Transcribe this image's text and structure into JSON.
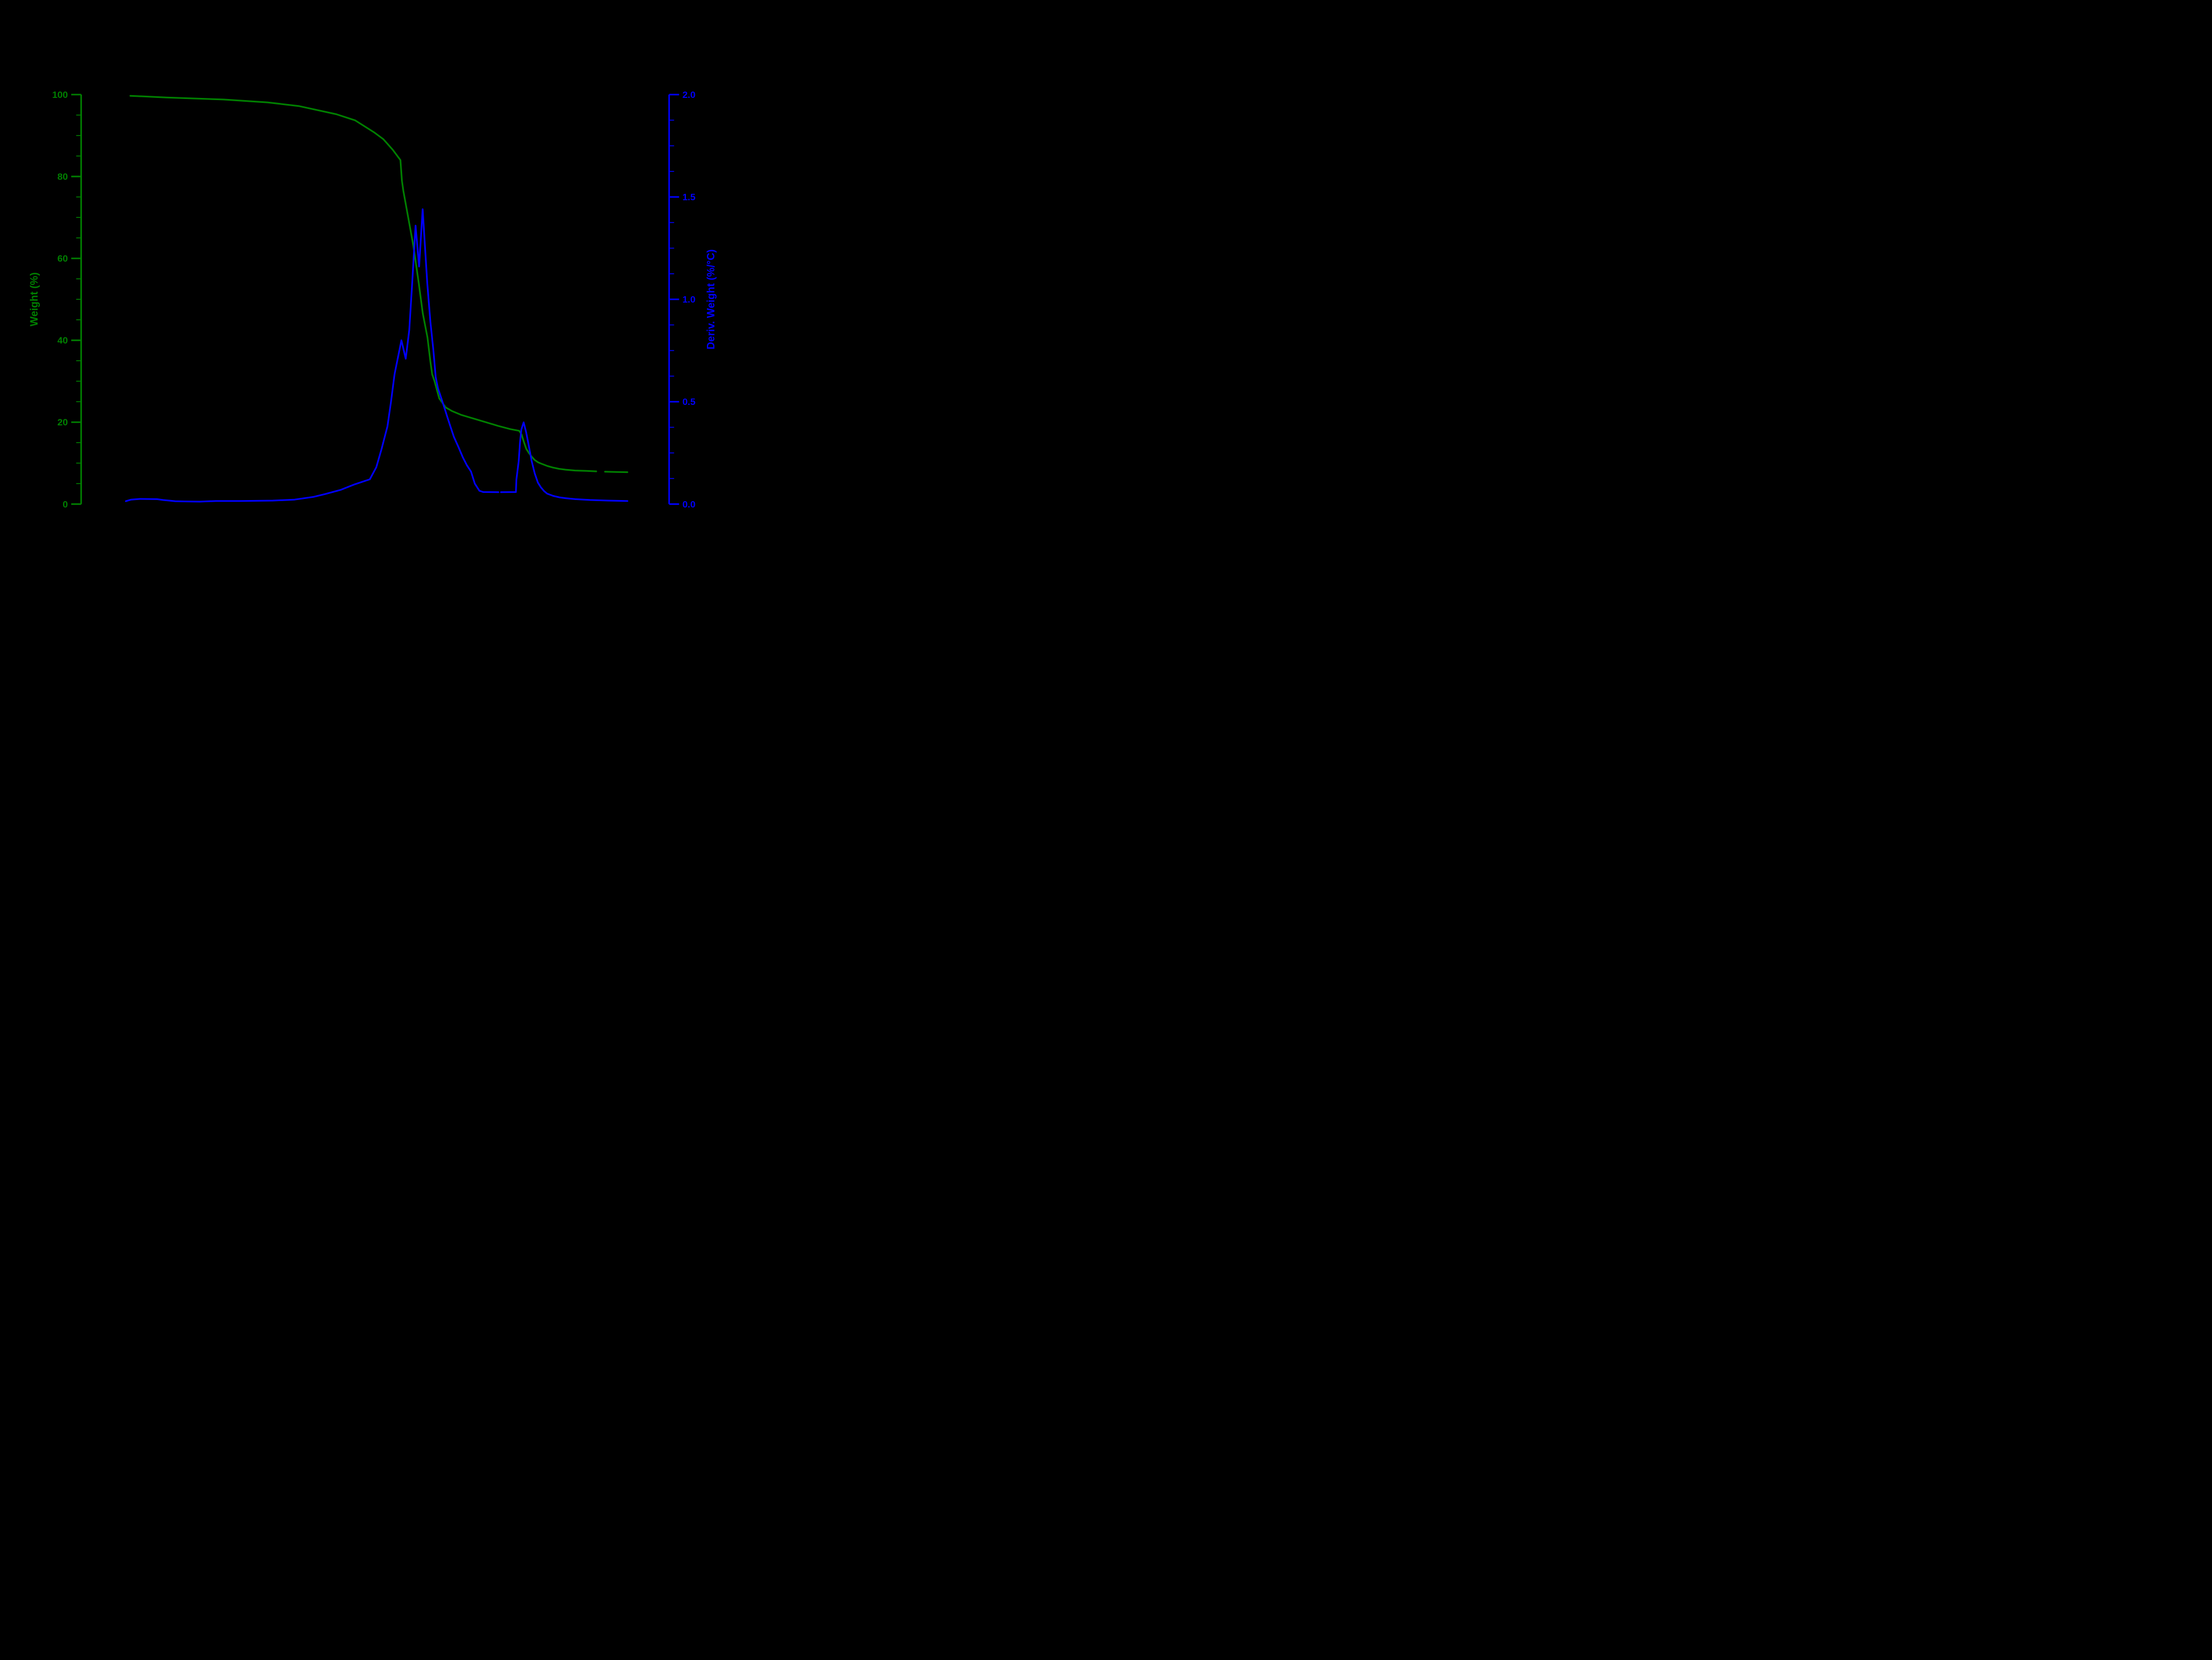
{
  "figure": {
    "background": "#000000",
    "title": ""
  },
  "chart_data": {
    "type": "line",
    "title": "",
    "background": "#000000",
    "grid": false,
    "legend": null,
    "x_axis": {
      "visible": false,
      "note": "no x-axis line, ticks or labels are visible; series x values are fractions (0-1) of plot width"
    },
    "left_axis": {
      "label": "Weight (%)",
      "color": "#008000",
      "min": 0,
      "max": 100,
      "major_ticks": [
        {
          "value": 0,
          "label": "0"
        },
        {
          "value": 20,
          "label": "20"
        },
        {
          "value": 40,
          "label": "40"
        },
        {
          "value": 60,
          "label": "60"
        },
        {
          "value": 80,
          "label": "80"
        },
        {
          "value": 100,
          "label": "100"
        }
      ],
      "minor_step": 5
    },
    "right_axis": {
      "label": "Deriv. Weight (%/°C)",
      "color": "#0000ff",
      "min": 0,
      "max": 2,
      "major_ticks": [
        {
          "value": 0,
          "label": "0.0"
        },
        {
          "value": 0.5,
          "label": "0.5"
        },
        {
          "value": 1,
          "label": "1.0"
        },
        {
          "value": 1.5,
          "label": "1.5"
        },
        {
          "value": 2,
          "label": "2.0"
        }
      ],
      "minor_step": 0.125
    },
    "series": [
      {
        "name": "Weight",
        "axis": "left",
        "color": "#008000",
        "segments": [
          [
            [
              0.0837,
              99.7
            ],
            [
              0.145,
              99.3
            ],
            [
              0.242,
              98.8
            ],
            [
              0.317,
              98.1
            ],
            [
              0.37,
              97.2
            ],
            [
              0.434,
              95.2
            ],
            [
              0.466,
              93.7
            ],
            [
              0.498,
              90.8
            ],
            [
              0.514,
              89.1
            ],
            [
              0.53,
              86.5
            ],
            [
              0.543,
              84.0
            ],
            [
              0.5455,
              79.0
            ],
            [
              0.548,
              76.5
            ],
            [
              0.565,
              63.1
            ],
            [
              0.574,
              54.1
            ],
            [
              0.581,
              46.6
            ],
            [
              0.589,
              40.7
            ],
            [
              0.594,
              34.8
            ],
            [
              0.597,
              31.7
            ],
            [
              0.601,
              30.0
            ],
            [
              0.609,
              25.8
            ],
            [
              0.62,
              23.6
            ],
            [
              0.631,
              22.7
            ],
            [
              0.646,
              21.8
            ],
            [
              0.667,
              20.9
            ],
            [
              0.688,
              20.0
            ],
            [
              0.709,
              19.1
            ],
            [
              0.73,
              18.3
            ],
            [
              0.745,
              17.9
            ],
            [
              0.749,
              17.0
            ],
            [
              0.753,
              15.2
            ],
            [
              0.757,
              13.5
            ],
            [
              0.761,
              12.6
            ],
            [
              0.766,
              11.6
            ],
            [
              0.771,
              10.8
            ],
            [
              0.777,
              10.2
            ],
            [
              0.782,
              9.9
            ],
            [
              0.793,
              9.3
            ],
            [
              0.803,
              8.9
            ],
            [
              0.813,
              8.6
            ],
            [
              0.824,
              8.4
            ],
            [
              0.84,
              8.2
            ],
            [
              0.859,
              8.1
            ],
            [
              0.876,
              8.0
            ]
          ],
          [
            [
              0.891,
              7.9
            ],
            [
              0.909,
              7.85
            ],
            [
              0.929,
              7.8
            ]
          ]
        ]
      },
      {
        "name": "Deriv. Weight",
        "axis": "right",
        "color": "#0000ff",
        "segments": [
          [
            [
              0.076,
              0.014
            ],
            [
              0.085,
              0.022
            ],
            [
              0.1,
              0.025
            ],
            [
              0.129,
              0.024
            ],
            [
              0.139,
              0.02
            ],
            [
              0.15,
              0.017
            ],
            [
              0.16,
              0.014
            ],
            [
              0.176,
              0.013
            ],
            [
              0.202,
              0.012
            ],
            [
              0.229,
              0.015
            ],
            [
              0.27,
              0.015
            ],
            [
              0.326,
              0.017
            ],
            [
              0.363,
              0.022
            ],
            [
              0.395,
              0.035
            ],
            [
              0.415,
              0.049
            ],
            [
              0.442,
              0.07
            ],
            [
              0.464,
              0.095
            ],
            [
              0.491,
              0.121
            ],
            [
              0.502,
              0.18
            ],
            [
              0.511,
              0.27
            ],
            [
              0.521,
              0.38
            ],
            [
              0.527,
              0.5
            ],
            [
              0.533,
              0.634
            ],
            [
              0.5447,
              0.8
            ],
            [
              0.552,
              0.71
            ],
            [
              0.558,
              0.85
            ],
            [
              0.563,
              1.08
            ],
            [
              0.5688,
              1.36
            ],
            [
              0.5748,
              1.16
            ],
            [
              0.5808,
              1.44
            ],
            [
              0.5886,
              1.08
            ],
            [
              0.594,
              0.89
            ],
            [
              0.599,
              0.754
            ],
            [
              0.603,
              0.62
            ],
            [
              0.607,
              0.565
            ],
            [
              0.6125,
              0.517
            ],
            [
              0.618,
              0.469
            ],
            [
              0.623,
              0.424
            ],
            [
              0.628,
              0.379
            ],
            [
              0.634,
              0.328
            ],
            [
              0.642,
              0.277
            ],
            [
              0.649,
              0.229
            ],
            [
              0.656,
              0.19
            ],
            [
              0.663,
              0.159
            ],
            [
              0.6695,
              0.1
            ],
            [
              0.6773,
              0.065
            ],
            [
              0.6836,
              0.059
            ],
            [
              0.7096,
              0.058
            ]
          ],
          [
            [
              0.714,
              0.058
            ],
            [
              0.7394,
              0.059
            ],
            [
              0.7403,
              0.12
            ],
            [
              0.7442,
              0.211
            ],
            [
              0.7464,
              0.301
            ],
            [
              0.7486,
              0.364
            ],
            [
              0.7526,
              0.399
            ],
            [
              0.7567,
              0.352
            ],
            [
              0.7611,
              0.289
            ],
            [
              0.7661,
              0.211
            ],
            [
              0.7714,
              0.15
            ],
            [
              0.7768,
              0.105
            ],
            [
              0.7818,
              0.082
            ],
            [
              0.7871,
              0.064
            ],
            [
              0.7925,
              0.051
            ],
            [
              0.8028,
              0.04
            ],
            [
              0.8132,
              0.033
            ],
            [
              0.8238,
              0.029
            ],
            [
              0.8404,
              0.024
            ],
            [
              0.8655,
              0.02
            ],
            [
              0.8968,
              0.017
            ],
            [
              0.9291,
              0.015
            ]
          ]
        ]
      }
    ]
  }
}
